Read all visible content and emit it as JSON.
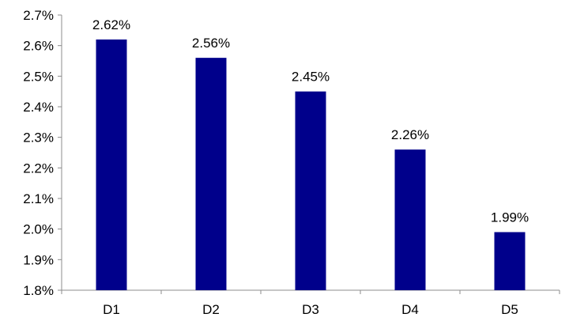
{
  "chart_data": {
    "type": "bar",
    "categories": [
      "D1",
      "D2",
      "D3",
      "D4",
      "D5"
    ],
    "values": [
      2.62,
      2.56,
      2.45,
      2.26,
      1.99
    ],
    "data_labels": [
      "2.62%",
      "2.56%",
      "2.45%",
      "2.26%",
      "1.99%"
    ],
    "y_ticks": [
      1.8,
      1.9,
      2.0,
      2.1,
      2.2,
      2.3,
      2.4,
      2.5,
      2.6,
      2.7
    ],
    "y_tick_labels": [
      "1.8%",
      "1.9%",
      "2.0%",
      "2.1%",
      "2.2%",
      "2.3%",
      "2.4%",
      "2.5%",
      "2.6%",
      "2.7%"
    ],
    "ylim": [
      1.8,
      2.7
    ],
    "title": "",
    "xlabel": "",
    "ylabel": "",
    "grid": false,
    "legend": "none",
    "bar_color": "#00008B"
  }
}
